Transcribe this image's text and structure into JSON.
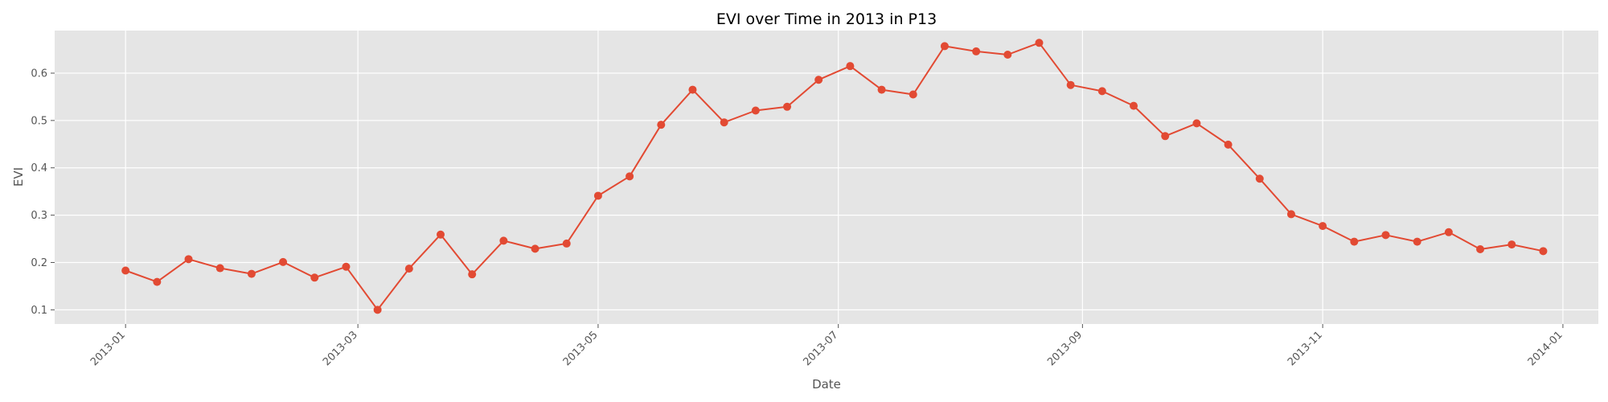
{
  "chart_data": {
    "type": "line",
    "title": "EVI over Time in 2013 in P13",
    "xlabel": "Date",
    "ylabel": "EVI",
    "xlim": [
      "2012-12-14",
      "2014-01-10"
    ],
    "ylim": [
      0.07,
      0.69
    ],
    "x_ticks": [
      {
        "date": "2013-01-01",
        "label": "2013-01"
      },
      {
        "date": "2013-03-01",
        "label": "2013-03"
      },
      {
        "date": "2013-05-01",
        "label": "2013-05"
      },
      {
        "date": "2013-07-01",
        "label": "2013-07"
      },
      {
        "date": "2013-09-01",
        "label": "2013-09"
      },
      {
        "date": "2013-11-01",
        "label": "2013-11"
      },
      {
        "date": "2014-01-01",
        "label": "2014-01"
      }
    ],
    "y_ticks": [
      {
        "value": 0.1,
        "label": "0.1"
      },
      {
        "value": 0.2,
        "label": "0.2"
      },
      {
        "value": 0.3,
        "label": "0.3"
      },
      {
        "value": 0.4,
        "label": "0.4"
      },
      {
        "value": 0.5,
        "label": "0.5"
      },
      {
        "value": 0.6,
        "label": "0.6"
      }
    ],
    "grid": true,
    "background_color": "#e5e5e5",
    "grid_color": "#ffffff",
    "line_color": "#e24a33",
    "x": [
      "2013-01-01",
      "2013-01-09",
      "2013-01-17",
      "2013-01-25",
      "2013-02-02",
      "2013-02-10",
      "2013-02-18",
      "2013-02-26",
      "2013-03-06",
      "2013-03-14",
      "2013-03-22",
      "2013-03-30",
      "2013-04-07",
      "2013-04-15",
      "2013-04-23",
      "2013-05-01",
      "2013-05-09",
      "2013-05-17",
      "2013-05-25",
      "2013-06-02",
      "2013-06-10",
      "2013-06-18",
      "2013-06-26",
      "2013-07-04",
      "2013-07-12",
      "2013-07-20",
      "2013-07-28",
      "2013-08-05",
      "2013-08-13",
      "2013-08-21",
      "2013-08-29",
      "2013-09-06",
      "2013-09-14",
      "2013-09-22",
      "2013-09-30",
      "2013-10-08",
      "2013-10-16",
      "2013-10-24",
      "2013-11-01",
      "2013-11-09",
      "2013-11-17",
      "2013-11-25",
      "2013-12-03",
      "2013-12-11",
      "2013-12-19",
      "2013-12-27"
    ],
    "series": [
      {
        "values": [
          0.183,
          0.159,
          0.207,
          0.188,
          0.176,
          0.201,
          0.168,
          0.191,
          0.1,
          0.187,
          0.259,
          0.175,
          0.246,
          0.229,
          0.24,
          0.341,
          0.382,
          0.491,
          0.565,
          0.496,
          0.521,
          0.529,
          0.586,
          0.615,
          0.565,
          0.555,
          0.657,
          0.646,
          0.639,
          0.664,
          0.575,
          0.562,
          0.531,
          0.467,
          0.494,
          0.449,
          0.377,
          0.302,
          0.277,
          0.244,
          0.258,
          0.244,
          0.264,
          0.228,
          0.238,
          0.224
        ]
      }
    ]
  }
}
